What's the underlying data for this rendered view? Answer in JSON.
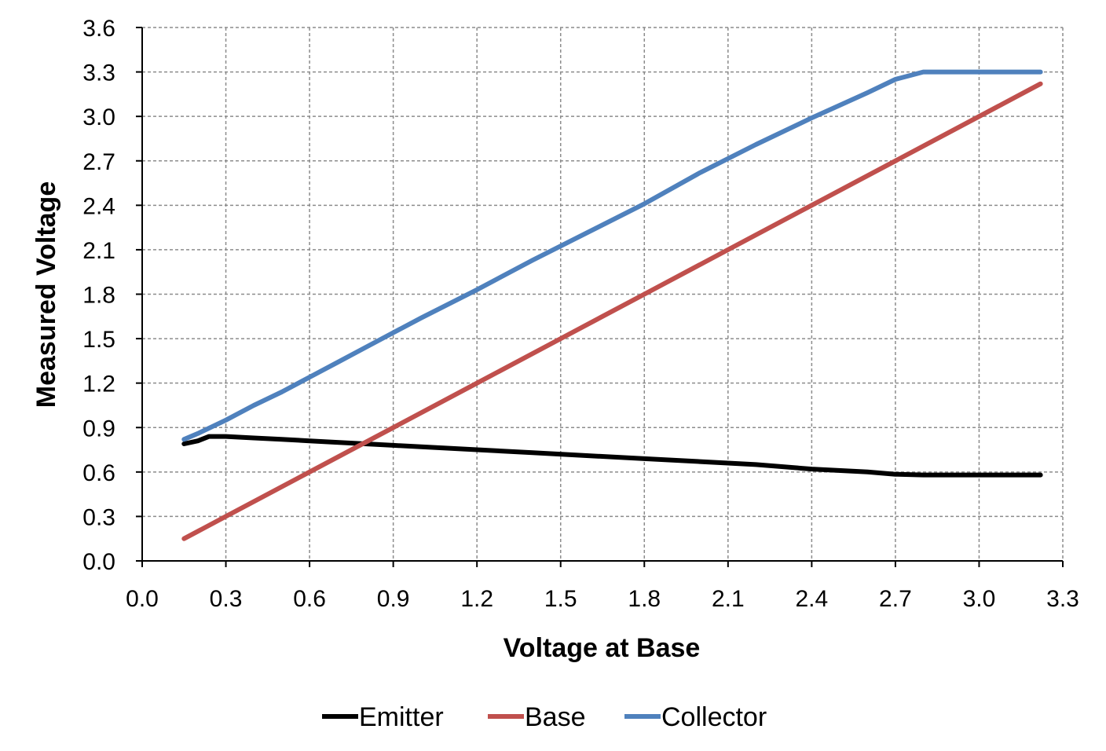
{
  "chart_data": {
    "type": "line",
    "title": "",
    "xlabel": "Voltage at Base",
    "ylabel": "Measured Voltage",
    "xlim": [
      0.0,
      3.3
    ],
    "ylim": [
      0.0,
      3.6
    ],
    "xticks": [
      "0.0",
      "0.3",
      "0.6",
      "0.9",
      "1.2",
      "1.5",
      "1.8",
      "2.1",
      "2.4",
      "2.7",
      "3.0",
      "3.3"
    ],
    "yticks": [
      "0.0",
      "0.3",
      "0.6",
      "0.9",
      "1.2",
      "1.5",
      "1.8",
      "2.1",
      "2.4",
      "2.7",
      "3.0",
      "3.3",
      "3.6"
    ],
    "grid": true,
    "legend_position": "bottom",
    "series": [
      {
        "name": "Emitter",
        "color": "#000000",
        "x": [
          0.15,
          0.2,
          0.24,
          0.3,
          0.4,
          0.5,
          0.6,
          0.7,
          0.8,
          0.9,
          1.0,
          1.2,
          1.4,
          1.6,
          1.8,
          2.0,
          2.2,
          2.4,
          2.6,
          2.7,
          2.8,
          3.0,
          3.22
        ],
        "y": [
          0.79,
          0.81,
          0.84,
          0.84,
          0.83,
          0.82,
          0.81,
          0.8,
          0.79,
          0.78,
          0.77,
          0.75,
          0.73,
          0.71,
          0.69,
          0.67,
          0.65,
          0.62,
          0.6,
          0.585,
          0.58,
          0.58,
          0.58
        ]
      },
      {
        "name": "Base",
        "color": "#c0504d",
        "x": [
          0.15,
          0.3,
          0.6,
          0.9,
          1.2,
          1.5,
          1.8,
          2.1,
          2.4,
          2.7,
          3.0,
          3.22
        ],
        "y": [
          0.15,
          0.3,
          0.6,
          0.9,
          1.2,
          1.5,
          1.8,
          2.1,
          2.4,
          2.7,
          3.0,
          3.22
        ]
      },
      {
        "name": "Collector",
        "color": "#4f81bd",
        "x": [
          0.15,
          0.2,
          0.3,
          0.4,
          0.5,
          0.6,
          0.7,
          0.8,
          0.9,
          1.0,
          1.2,
          1.4,
          1.6,
          1.8,
          2.0,
          2.2,
          2.4,
          2.6,
          2.7,
          2.8,
          3.0,
          3.22
        ],
        "y": [
          0.82,
          0.86,
          0.95,
          1.05,
          1.14,
          1.24,
          1.34,
          1.44,
          1.54,
          1.64,
          1.83,
          2.03,
          2.22,
          2.41,
          2.62,
          2.81,
          2.99,
          3.16,
          3.25,
          3.3,
          3.3,
          3.3
        ]
      }
    ]
  }
}
